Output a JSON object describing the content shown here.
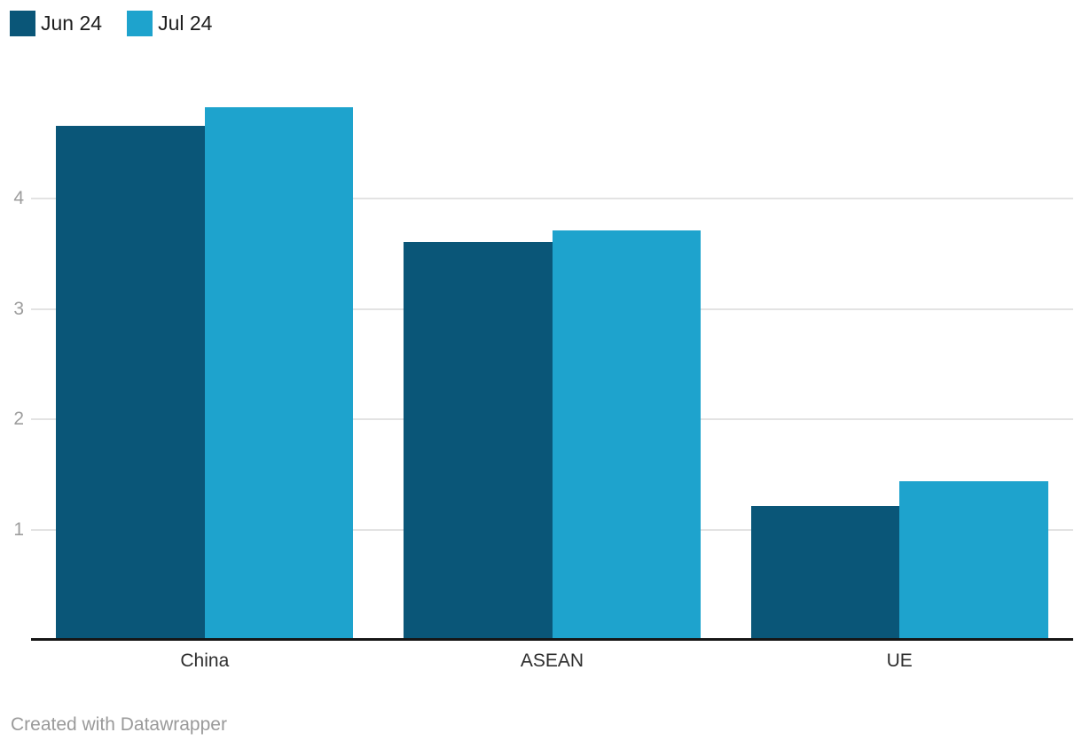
{
  "legend": {
    "items": [
      {
        "label": "Jun 24",
        "color": "#0a5678"
      },
      {
        "label": "Jul 24",
        "color": "#1ea3cd"
      }
    ]
  },
  "footer": {
    "text": "Created with Datawrapper"
  },
  "colors": {
    "series_dark": "#0a5678",
    "series_light": "#1ea3cd",
    "gridline": "#e3e3e3",
    "axis_line": "#161616",
    "tick_text": "#9d9d9d",
    "category_text": "#2e2e2e",
    "footer_text": "#9a9a9a",
    "background": "#ffffff"
  },
  "chart_data": {
    "type": "bar",
    "title": "",
    "xlabel": "",
    "ylabel": "",
    "categories": [
      "China",
      "ASEAN",
      "UE"
    ],
    "series": [
      {
        "name": "Jun 24",
        "color": "#0a5678",
        "values": [
          4.66,
          3.61,
          1.21
        ]
      },
      {
        "name": "Jul 24",
        "color": "#1ea3cd",
        "values": [
          4.83,
          3.71,
          1.44
        ]
      }
    ],
    "yticks": [
      1,
      2,
      3,
      4
    ],
    "ylim": [
      0,
      5
    ],
    "grid": true,
    "legend_position": "top-left",
    "attribution": "Created with Datawrapper"
  }
}
